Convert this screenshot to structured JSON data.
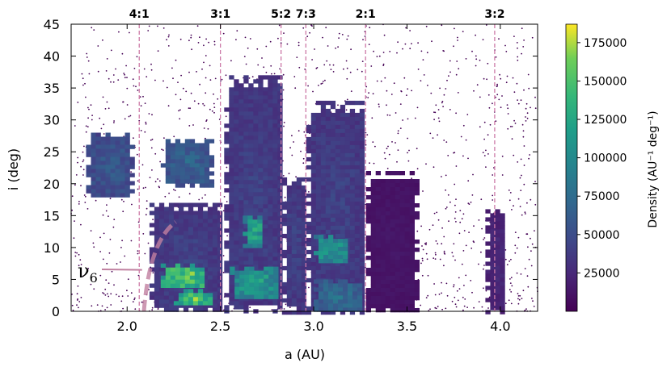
{
  "chart_data": {
    "type": "heatmap",
    "title": "",
    "xlabel": "a (AU)",
    "ylabel": "i (deg)",
    "xlim": [
      1.7,
      4.2
    ],
    "ylim": [
      0,
      45
    ],
    "xticks": [
      2.0,
      2.5,
      3.0,
      3.5,
      4.0
    ],
    "xtick_labels": [
      "2.0",
      "2.5",
      "3.0",
      "3.5",
      "4.0"
    ],
    "yticks": [
      0,
      5,
      10,
      15,
      20,
      25,
      30,
      35,
      40,
      45
    ],
    "ytick_labels": [
      "0",
      "5",
      "10",
      "15",
      "20",
      "25",
      "30",
      "35",
      "40",
      "45"
    ],
    "resonances": [
      {
        "label": "4:1",
        "a": 2.065
      },
      {
        "label": "3:1",
        "a": 2.5
      },
      {
        "label": "5:2",
        "a": 2.825
      },
      {
        "label": "7:3",
        "a": 2.958
      },
      {
        "label": "2:1",
        "a": 3.278
      },
      {
        "label": "3:2",
        "a": 3.97
      }
    ],
    "annotation": {
      "text": "ν",
      "subscript": "6"
    },
    "colorbar": {
      "label": "Density (AU⁻¹ deg⁻¹)",
      "range": [
        0,
        187000
      ],
      "ticks": [
        25000,
        50000,
        75000,
        100000,
        125000,
        150000,
        175000
      ],
      "tick_labels": [
        "25000",
        "50000",
        "75000",
        "100000",
        "125000",
        "150000",
        "175000"
      ],
      "colormap": "viridis"
    },
    "density_regions": [
      {
        "a": [
          1.78,
          2.02
        ],
        "i": [
          18,
          28
        ],
        "level": 0.35
      },
      {
        "a": [
          2.18,
          2.45
        ],
        "i": [
          20,
          27
        ],
        "level": 0.4
      },
      {
        "a": [
          2.12,
          2.5
        ],
        "i": [
          0,
          17
        ],
        "level": 0.25
      },
      {
        "a": [
          2.18,
          2.4
        ],
        "i": [
          4,
          7.5
        ],
        "level": 0.95
      },
      {
        "a": [
          2.25,
          2.45
        ],
        "i": [
          1,
          3.5
        ],
        "level": 0.9
      },
      {
        "a": [
          2.52,
          2.82
        ],
        "i": [
          0,
          37
        ],
        "level": 0.25
      },
      {
        "a": [
          2.62,
          2.72
        ],
        "i": [
          10,
          15
        ],
        "level": 0.75
      },
      {
        "a": [
          2.55,
          2.8
        ],
        "i": [
          2,
          7
        ],
        "level": 0.7
      },
      {
        "a": [
          2.83,
          2.95
        ],
        "i": [
          0,
          21
        ],
        "level": 0.25
      },
      {
        "a": [
          2.96,
          3.27
        ],
        "i": [
          0,
          33
        ],
        "level": 0.25
      },
      {
        "a": [
          3.0,
          3.17
        ],
        "i": [
          8,
          12
        ],
        "level": 0.7
      },
      {
        "a": [
          3.0,
          3.25
        ],
        "i": [
          0,
          5
        ],
        "level": 0.45
      },
      {
        "a": [
          3.28,
          3.55
        ],
        "i": [
          0,
          22
        ],
        "level": 0.08
      },
      {
        "a": [
          3.92,
          4.02
        ],
        "i": [
          0,
          16
        ],
        "level": 0.15
      }
    ]
  }
}
